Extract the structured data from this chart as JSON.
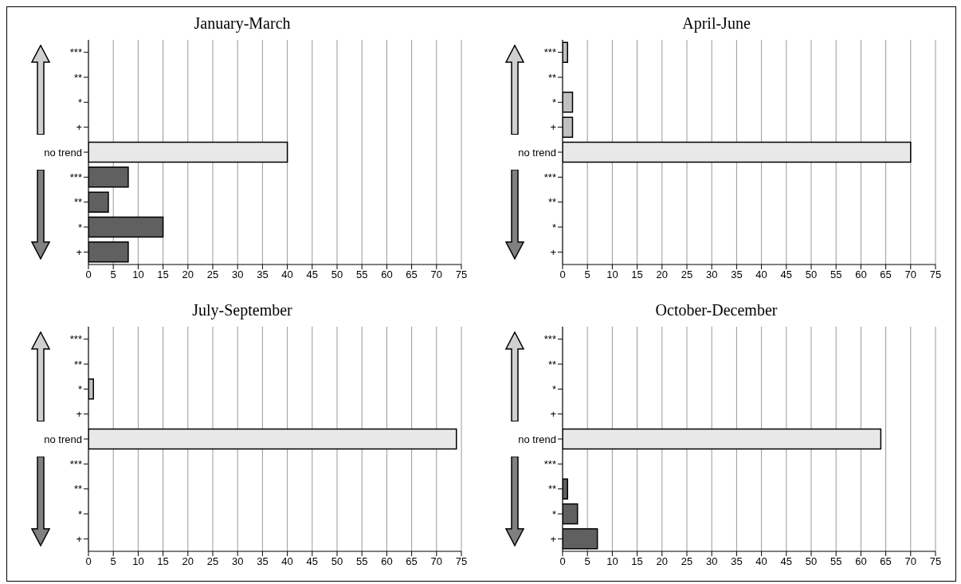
{
  "chart_data": [
    {
      "type": "bar",
      "orientation": "horizontal",
      "title": "January-March",
      "categories": [
        "***",
        "**",
        "*",
        "+",
        "no trend",
        "***",
        "**",
        "*",
        "+"
      ],
      "values": [
        0,
        0,
        0,
        0,
        40,
        8,
        4,
        15,
        8
      ],
      "colors": [
        "#c0c0c0",
        "#c0c0c0",
        "#c0c0c0",
        "#c0c0c0",
        "#e8e8e8",
        "#606060",
        "#606060",
        "#606060",
        "#606060"
      ],
      "xlim": [
        0,
        75
      ],
      "xticks": [
        0,
        5,
        10,
        15,
        20,
        25,
        30,
        35,
        40,
        45,
        50,
        55,
        60,
        65,
        70,
        75
      ],
      "grid": "x"
    },
    {
      "type": "bar",
      "orientation": "horizontal",
      "title": "April-June",
      "categories": [
        "***",
        "**",
        "*",
        "+",
        "no trend",
        "***",
        "**",
        "*",
        "+"
      ],
      "values": [
        1,
        0,
        2,
        2,
        70,
        0,
        0,
        0,
        0
      ],
      "colors": [
        "#c0c0c0",
        "#c0c0c0",
        "#c0c0c0",
        "#c0c0c0",
        "#e8e8e8",
        "#606060",
        "#606060",
        "#606060",
        "#606060"
      ],
      "xlim": [
        0,
        75
      ],
      "xticks": [
        0,
        5,
        10,
        15,
        20,
        25,
        30,
        35,
        40,
        45,
        50,
        55,
        60,
        65,
        70,
        75
      ],
      "grid": "x"
    },
    {
      "type": "bar",
      "orientation": "horizontal",
      "title": "July-September",
      "categories": [
        "***",
        "**",
        "*",
        "+",
        "no trend",
        "***",
        "**",
        "*",
        "+"
      ],
      "values": [
        0,
        0,
        1,
        0,
        74,
        0,
        0,
        0,
        0
      ],
      "colors": [
        "#c0c0c0",
        "#c0c0c0",
        "#c0c0c0",
        "#c0c0c0",
        "#e8e8e8",
        "#606060",
        "#606060",
        "#606060",
        "#606060"
      ],
      "xlim": [
        0,
        75
      ],
      "xticks": [
        0,
        5,
        10,
        15,
        20,
        25,
        30,
        35,
        40,
        45,
        50,
        55,
        60,
        65,
        70,
        75
      ],
      "grid": "x"
    },
    {
      "type": "bar",
      "orientation": "horizontal",
      "title": "October-December",
      "categories": [
        "***",
        "**",
        "*",
        "+",
        "no trend",
        "***",
        "**",
        "*",
        "+"
      ],
      "values": [
        0,
        0,
        0,
        0,
        64,
        0,
        1,
        3,
        7
      ],
      "colors": [
        "#c0c0c0",
        "#c0c0c0",
        "#c0c0c0",
        "#c0c0c0",
        "#e8e8e8",
        "#606060",
        "#606060",
        "#606060",
        "#606060"
      ],
      "xlim": [
        0,
        75
      ],
      "xticks": [
        0,
        5,
        10,
        15,
        20,
        25,
        30,
        35,
        40,
        45,
        50,
        55,
        60,
        65,
        70,
        75
      ],
      "grid": "x"
    }
  ]
}
